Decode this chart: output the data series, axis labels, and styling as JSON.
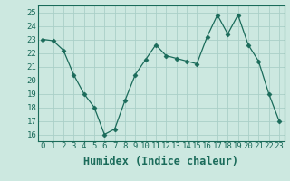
{
  "x": [
    0,
    1,
    2,
    3,
    4,
    5,
    6,
    7,
    8,
    9,
    10,
    11,
    12,
    13,
    14,
    15,
    16,
    17,
    18,
    19,
    20,
    21,
    22,
    23
  ],
  "y": [
    23.0,
    22.9,
    22.2,
    20.4,
    19.0,
    18.0,
    16.0,
    16.4,
    18.5,
    20.4,
    21.5,
    22.6,
    21.8,
    21.6,
    21.4,
    21.2,
    23.2,
    24.8,
    23.4,
    24.8,
    22.6,
    21.4,
    19.0,
    17.0
  ],
  "line_color": "#1a6b5a",
  "marker": "D",
  "marker_size": 2.5,
  "bg_color": "#cce8e0",
  "grid_color": "#aacfc8",
  "xlabel": "Humidex (Indice chaleur)",
  "xlim": [
    -0.5,
    23.5
  ],
  "ylim": [
    15.5,
    25.5
  ],
  "yticks": [
    16,
    17,
    18,
    19,
    20,
    21,
    22,
    23,
    24,
    25
  ],
  "xticks": [
    0,
    1,
    2,
    3,
    4,
    5,
    6,
    7,
    8,
    9,
    10,
    11,
    12,
    13,
    14,
    15,
    16,
    17,
    18,
    19,
    20,
    21,
    22,
    23
  ],
  "tick_label_fontsize": 6.5,
  "xlabel_fontsize": 8.5
}
